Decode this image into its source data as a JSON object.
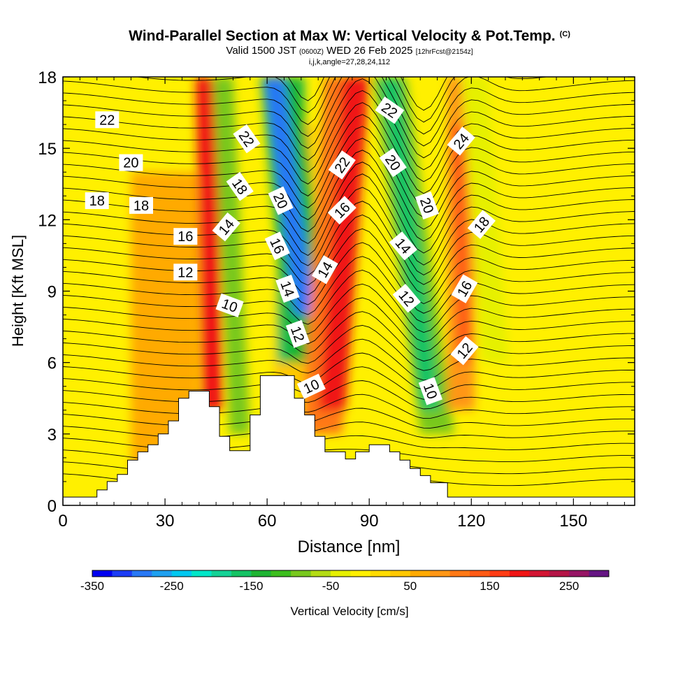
{
  "title": {
    "main": "Wind-Parallel Section at Max W: Vertical Velocity & Pot.Temp.",
    "unit_mark": "(C)",
    "valid_prefix": "Valid 1500 JST",
    "valid_utc": "(0600Z)",
    "valid_date": "WED 26 Feb 2025",
    "forecast": "[12hrFcst@2154z]",
    "indices": "i,j,k,angle=27,28,24,112"
  },
  "chart_data": {
    "type": "heatmap",
    "xlabel": "Distance [nm]",
    "ylabel": "Height [Kft MSL]",
    "xlim": [
      0,
      168
    ],
    "ylim": [
      0,
      18
    ],
    "x_ticks": [
      0,
      30,
      60,
      90,
      120,
      150
    ],
    "y_ticks": [
      0,
      3,
      6,
      9,
      12,
      15,
      18
    ],
    "colorbar": {
      "label": "Vertical Velocity [cm/s]",
      "range": [
        -350,
        300
      ],
      "step": 25,
      "tick_values": [
        -350,
        -250,
        -150,
        -50,
        50,
        150,
        250
      ],
      "colors": [
        "#0000f0",
        "#1c3cf5",
        "#2878f5",
        "#1ea0f0",
        "#00c8f0",
        "#00e6c8",
        "#14d296",
        "#14c364",
        "#1eb432",
        "#3cbe1e",
        "#78c81e",
        "#b4dc14",
        "#e6f000",
        "#fff000",
        "#ffdc00",
        "#ffc800",
        "#ffaa00",
        "#ff9614",
        "#ff7814",
        "#ff5a14",
        "#ff3c14",
        "#f01414",
        "#d21432",
        "#b41446",
        "#961464",
        "#641482"
      ]
    },
    "terrain": [
      [
        0,
        0.35
      ],
      [
        10,
        0.35
      ],
      [
        10,
        0.65
      ],
      [
        13,
        0.65
      ],
      [
        13,
        1.0
      ],
      [
        16,
        1.0
      ],
      [
        16,
        1.3
      ],
      [
        19,
        1.3
      ],
      [
        19,
        1.9
      ],
      [
        22,
        1.9
      ],
      [
        22,
        2.25
      ],
      [
        25,
        2.25
      ],
      [
        25,
        2.55
      ],
      [
        28,
        2.55
      ],
      [
        28,
        3.0
      ],
      [
        31,
        3.0
      ],
      [
        31,
        3.55
      ],
      [
        34,
        3.55
      ],
      [
        34,
        4.5
      ],
      [
        37,
        4.5
      ],
      [
        37,
        4.8
      ],
      [
        43,
        4.8
      ],
      [
        43,
        4.15
      ],
      [
        46,
        4.15
      ],
      [
        46,
        2.9
      ],
      [
        49,
        2.9
      ],
      [
        49,
        2.3
      ],
      [
        55,
        2.3
      ],
      [
        55,
        3.8
      ],
      [
        58,
        3.8
      ],
      [
        58,
        5.45
      ],
      [
        68,
        5.45
      ],
      [
        68,
        4.5
      ],
      [
        71,
        4.5
      ],
      [
        71,
        3.8
      ],
      [
        74,
        3.8
      ],
      [
        74,
        2.9
      ],
      [
        77,
        2.9
      ],
      [
        77,
        2.25
      ],
      [
        83,
        2.25
      ],
      [
        83,
        1.95
      ],
      [
        86,
        1.95
      ],
      [
        86,
        2.25
      ],
      [
        90,
        2.25
      ],
      [
        90,
        2.55
      ],
      [
        96,
        2.55
      ],
      [
        96,
        2.25
      ],
      [
        99,
        2.25
      ],
      [
        99,
        1.9
      ],
      [
        102,
        1.9
      ],
      [
        102,
        1.55
      ],
      [
        105,
        1.55
      ],
      [
        105,
        1.25
      ],
      [
        108,
        1.25
      ],
      [
        108,
        0.95
      ],
      [
        113,
        0.95
      ],
      [
        113,
        0.35
      ],
      [
        168,
        0.35
      ]
    ],
    "velocity_field": [
      {
        "x": 47,
        "y": 11,
        "w": -150,
        "note": "downdraft band"
      },
      {
        "x": 72,
        "y": 13,
        "w": -300,
        "note": "strong downdraft band"
      },
      {
        "x": 86,
        "y": 12,
        "w": 175,
        "note": "strong updraft band"
      },
      {
        "x": 102,
        "y": 11,
        "w": -175,
        "note": "downdraft band"
      },
      {
        "x": 118,
        "y": 10,
        "w": 100,
        "note": "updraft band"
      },
      {
        "x": 40,
        "y": 14,
        "w": 175,
        "note": "updraft band"
      }
    ],
    "contour_labels": [
      {
        "text": "22",
        "x": 13,
        "y": 16.2,
        "angle": 0
      },
      {
        "text": "20",
        "x": 20,
        "y": 14.4,
        "angle": 0
      },
      {
        "text": "18",
        "x": 10,
        "y": 12.8,
        "angle": 0
      },
      {
        "text": "18",
        "x": 23,
        "y": 12.6,
        "angle": 0
      },
      {
        "text": "16",
        "x": 36,
        "y": 11.3,
        "angle": 0
      },
      {
        "text": "12",
        "x": 36,
        "y": 9.8,
        "angle": 0
      },
      {
        "text": "14",
        "x": 48,
        "y": 11.7,
        "angle": -50
      },
      {
        "text": "10",
        "x": 49,
        "y": 8.4,
        "angle": 20
      },
      {
        "text": "18",
        "x": 52,
        "y": 13.4,
        "angle": 55
      },
      {
        "text": "22",
        "x": 54,
        "y": 15.4,
        "angle": 55
      },
      {
        "text": "20",
        "x": 64,
        "y": 12.8,
        "angle": 65
      },
      {
        "text": "16",
        "x": 63,
        "y": 10.9,
        "angle": 65
      },
      {
        "text": "14",
        "x": 66,
        "y": 9.1,
        "angle": 70
      },
      {
        "text": "12",
        "x": 69,
        "y": 7.2,
        "angle": 70
      },
      {
        "text": "22",
        "x": 82,
        "y": 14.3,
        "angle": -55
      },
      {
        "text": "14",
        "x": 77,
        "y": 9.9,
        "angle": -60
      },
      {
        "text": "10",
        "x": 73,
        "y": 5.0,
        "angle": -25
      },
      {
        "text": "16",
        "x": 82,
        "y": 12.4,
        "angle": -45
      },
      {
        "text": "22",
        "x": 96,
        "y": 16.6,
        "angle": 35
      },
      {
        "text": "20",
        "x": 97,
        "y": 14.4,
        "angle": 55
      },
      {
        "text": "14",
        "x": 100,
        "y": 10.9,
        "angle": 50
      },
      {
        "text": "12",
        "x": 101,
        "y": 8.7,
        "angle": 50
      },
      {
        "text": "20",
        "x": 107,
        "y": 12.6,
        "angle": 70
      },
      {
        "text": "10",
        "x": 108,
        "y": 4.8,
        "angle": 70
      },
      {
        "text": "24",
        "x": 117,
        "y": 15.3,
        "angle": -50
      },
      {
        "text": "18",
        "x": 123,
        "y": 11.8,
        "angle": -50
      },
      {
        "text": "16",
        "x": 118,
        "y": 9.1,
        "angle": -60
      },
      {
        "text": "12",
        "x": 118,
        "y": 6.5,
        "angle": -50
      }
    ]
  }
}
